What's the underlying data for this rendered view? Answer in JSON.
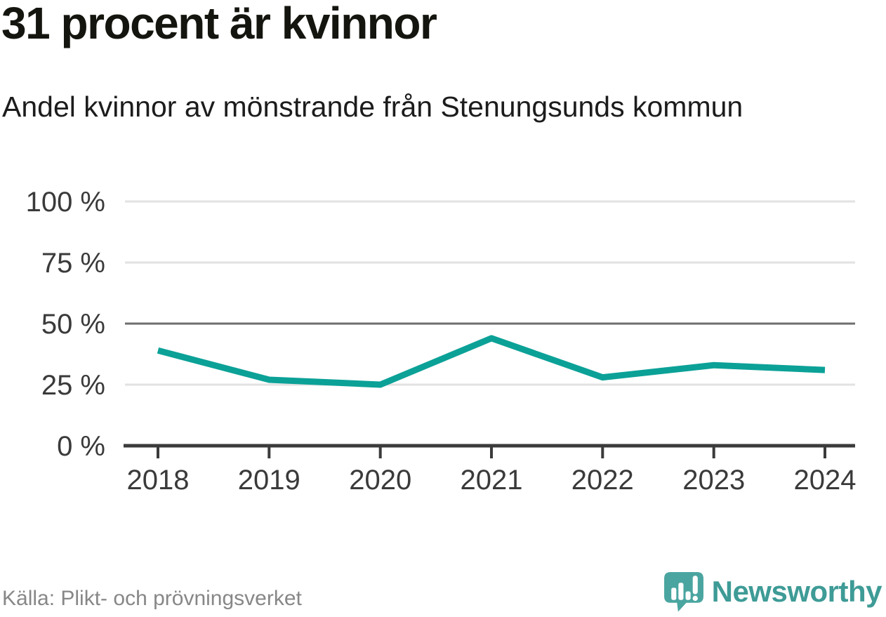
{
  "chart_data": {
    "type": "line",
    "title": "31 procent är kvinnor",
    "subtitle": "Andel kvinnor av mönstrande från Stenungsunds kommun",
    "categories": [
      "2018",
      "2019",
      "2020",
      "2021",
      "2022",
      "2023",
      "2024"
    ],
    "values": [
      39,
      27,
      25,
      44,
      28,
      33,
      31
    ],
    "unit": "%",
    "ylim": [
      0,
      100
    ],
    "yticks": [
      0,
      25,
      50,
      75,
      100
    ],
    "ytick_labels": [
      "0 %",
      "25 %",
      "50 %",
      "75 %",
      "100 %"
    ],
    "emphasized_gridline": 50,
    "grid": "horizontal",
    "legend": "none",
    "xlabel": "",
    "ylabel": "",
    "line_color": "#0ba197",
    "grid_color": "#e2e2e2",
    "emphasis_grid_color": "#6e6e6e",
    "axis_color": "#3b3b3b",
    "label_color": "#3a3a3a"
  },
  "footer": {
    "source": "Källa: Plikt- och prövningsverket",
    "logo_text": "Newsworthy",
    "brand_color": "#3e9b96",
    "logo_bubble_color": "#4aa5a0"
  }
}
